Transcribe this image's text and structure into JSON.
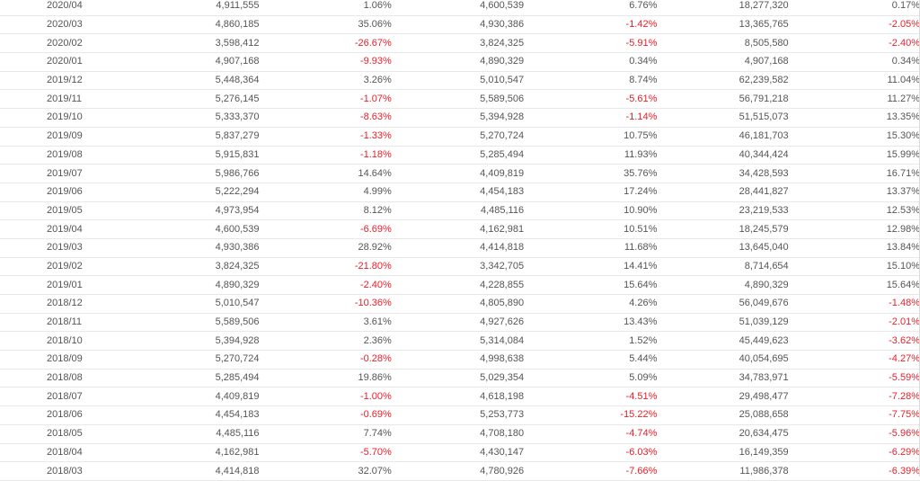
{
  "table": {
    "rows": [
      [
        "2020/04",
        "4,911,555",
        "1.06%",
        "4,600,539",
        "6.76%",
        "18,277,320",
        "0.17%"
      ],
      [
        "2020/03",
        "4,860,185",
        "35.06%",
        "4,930,386",
        "-1.42%",
        "13,365,765",
        "-2.05%"
      ],
      [
        "2020/02",
        "3,598,412",
        "-26.67%",
        "3,824,325",
        "-5.91%",
        "8,505,580",
        "-2.40%"
      ],
      [
        "2020/01",
        "4,907,168",
        "-9.93%",
        "4,890,329",
        "0.34%",
        "4,907,168",
        "0.34%"
      ],
      [
        "2019/12",
        "5,448,364",
        "3.26%",
        "5,010,547",
        "8.74%",
        "62,239,582",
        "11.04%"
      ],
      [
        "2019/11",
        "5,276,145",
        "-1.07%",
        "5,589,506",
        "-5.61%",
        "56,791,218",
        "11.27%"
      ],
      [
        "2019/10",
        "5,333,370",
        "-8.63%",
        "5,394,928",
        "-1.14%",
        "51,515,073",
        "13.35%"
      ],
      [
        "2019/09",
        "5,837,279",
        "-1.33%",
        "5,270,724",
        "10.75%",
        "46,181,703",
        "15.30%"
      ],
      [
        "2019/08",
        "5,915,831",
        "-1.18%",
        "5,285,494",
        "11.93%",
        "40,344,424",
        "15.99%"
      ],
      [
        "2019/07",
        "5,986,766",
        "14.64%",
        "4,409,819",
        "35.76%",
        "34,428,593",
        "16.71%"
      ],
      [
        "2019/06",
        "5,222,294",
        "4.99%",
        "4,454,183",
        "17.24%",
        "28,441,827",
        "13.37%"
      ],
      [
        "2019/05",
        "4,973,954",
        "8.12%",
        "4,485,116",
        "10.90%",
        "23,219,533",
        "12.53%"
      ],
      [
        "2019/04",
        "4,600,539",
        "-6.69%",
        "4,162,981",
        "10.51%",
        "18,245,579",
        "12.98%"
      ],
      [
        "2019/03",
        "4,930,386",
        "28.92%",
        "4,414,818",
        "11.68%",
        "13,645,040",
        "13.84%"
      ],
      [
        "2019/02",
        "3,824,325",
        "-21.80%",
        "3,342,705",
        "14.41%",
        "8,714,654",
        "15.10%"
      ],
      [
        "2019/01",
        "4,890,329",
        "-2.40%",
        "4,228,855",
        "15.64%",
        "4,890,329",
        "15.64%"
      ],
      [
        "2018/12",
        "5,010,547",
        "-10.36%",
        "4,805,890",
        "4.26%",
        "56,049,676",
        "-1.48%"
      ],
      [
        "2018/11",
        "5,589,506",
        "3.61%",
        "4,927,626",
        "13.43%",
        "51,039,129",
        "-2.01%"
      ],
      [
        "2018/10",
        "5,394,928",
        "2.36%",
        "5,314,084",
        "1.52%",
        "45,449,623",
        "-3.62%"
      ],
      [
        "2018/09",
        "5,270,724",
        "-0.28%",
        "4,998,638",
        "5.44%",
        "40,054,695",
        "-4.27%"
      ],
      [
        "2018/08",
        "5,285,494",
        "19.86%",
        "5,029,354",
        "5.09%",
        "34,783,971",
        "-5.59%"
      ],
      [
        "2018/07",
        "4,409,819",
        "-1.00%",
        "4,618,198",
        "-4.51%",
        "29,498,477",
        "-7.28%"
      ],
      [
        "2018/06",
        "4,454,183",
        "-0.69%",
        "5,253,773",
        "-15.22%",
        "25,088,658",
        "-7.75%"
      ],
      [
        "2018/05",
        "4,485,116",
        "7.74%",
        "4,708,180",
        "-4.74%",
        "20,634,475",
        "-5.96%"
      ],
      [
        "2018/04",
        "4,162,981",
        "-5.70%",
        "4,430,147",
        "-6.03%",
        "16,149,359",
        "-6.29%"
      ],
      [
        "2018/03",
        "4,414,818",
        "32.07%",
        "4,780,926",
        "-7.66%",
        "11,986,378",
        "-6.39%"
      ]
    ],
    "colors": {
      "text": "#555555",
      "negative": "#e8202a",
      "rule": "#e8e8e8"
    }
  }
}
